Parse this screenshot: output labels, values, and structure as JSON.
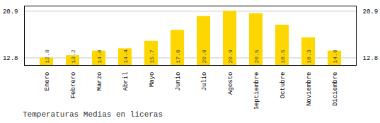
{
  "chart_data": {
    "type": "bar",
    "title": "Temperaturas Medias en liceras",
    "categories": [
      "Enero",
      "Febrero",
      "Marzo",
      "Abril",
      "Mayo",
      "Junio",
      "Julio",
      "Agosto",
      "Septiembre",
      "Octubre",
      "Noviembre",
      "Diciembre"
    ],
    "values": [
      12.8,
      13.2,
      14.0,
      14.4,
      15.7,
      17.6,
      20.0,
      20.9,
      20.5,
      18.5,
      16.3,
      14.0
    ],
    "value_labels": [
      "12.8",
      "13.2",
      "14.0",
      "14.4",
      "15.7",
      "17.6",
      "20.0",
      "20.9",
      "20.5",
      "18.5",
      "16.3",
      "14.0"
    ],
    "data_labels": true,
    "color": "#FFD700",
    "ylim": [
      11.5,
      21.8
    ],
    "yticks": [
      12.8,
      20.9
    ],
    "grid": true
  }
}
